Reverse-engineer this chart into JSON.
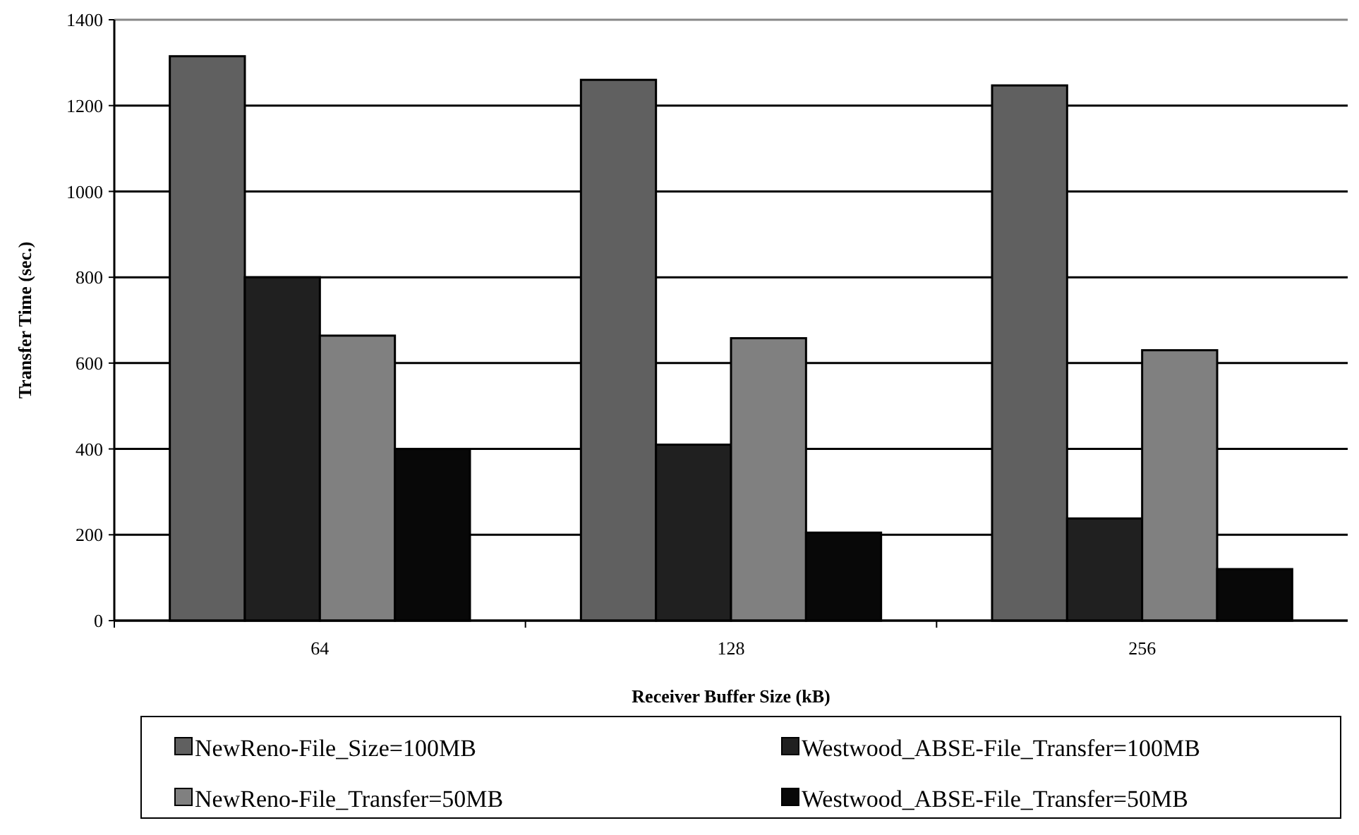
{
  "chart_data": {
    "type": "bar",
    "xlabel": "Receiver Buffer Size (kB)",
    "ylabel": "Transfer Time (sec.)",
    "categories": [
      "64",
      "128",
      "256"
    ],
    "series": [
      {
        "name": "NewReno-File_Size=100MB",
        "color": "#606060",
        "values": [
          1315,
          1260,
          1247
        ]
      },
      {
        "name": "Westwood_ABSE-File_Transfer=100MB",
        "color": "#202020",
        "values": [
          800,
          410,
          238
        ]
      },
      {
        "name": "NewReno-File_Transfer=50MB",
        "color": "#808080",
        "values": [
          664,
          658,
          630
        ]
      },
      {
        "name": "Westwood_ABSE-File_Transfer=50MB",
        "color": "#080808",
        "values": [
          400,
          205,
          120
        ]
      }
    ],
    "ylim": [
      0,
      1400
    ],
    "yticks": [
      0,
      200,
      400,
      600,
      800,
      1000,
      1200,
      1400
    ],
    "grid": "y",
    "legend": "bottom"
  }
}
